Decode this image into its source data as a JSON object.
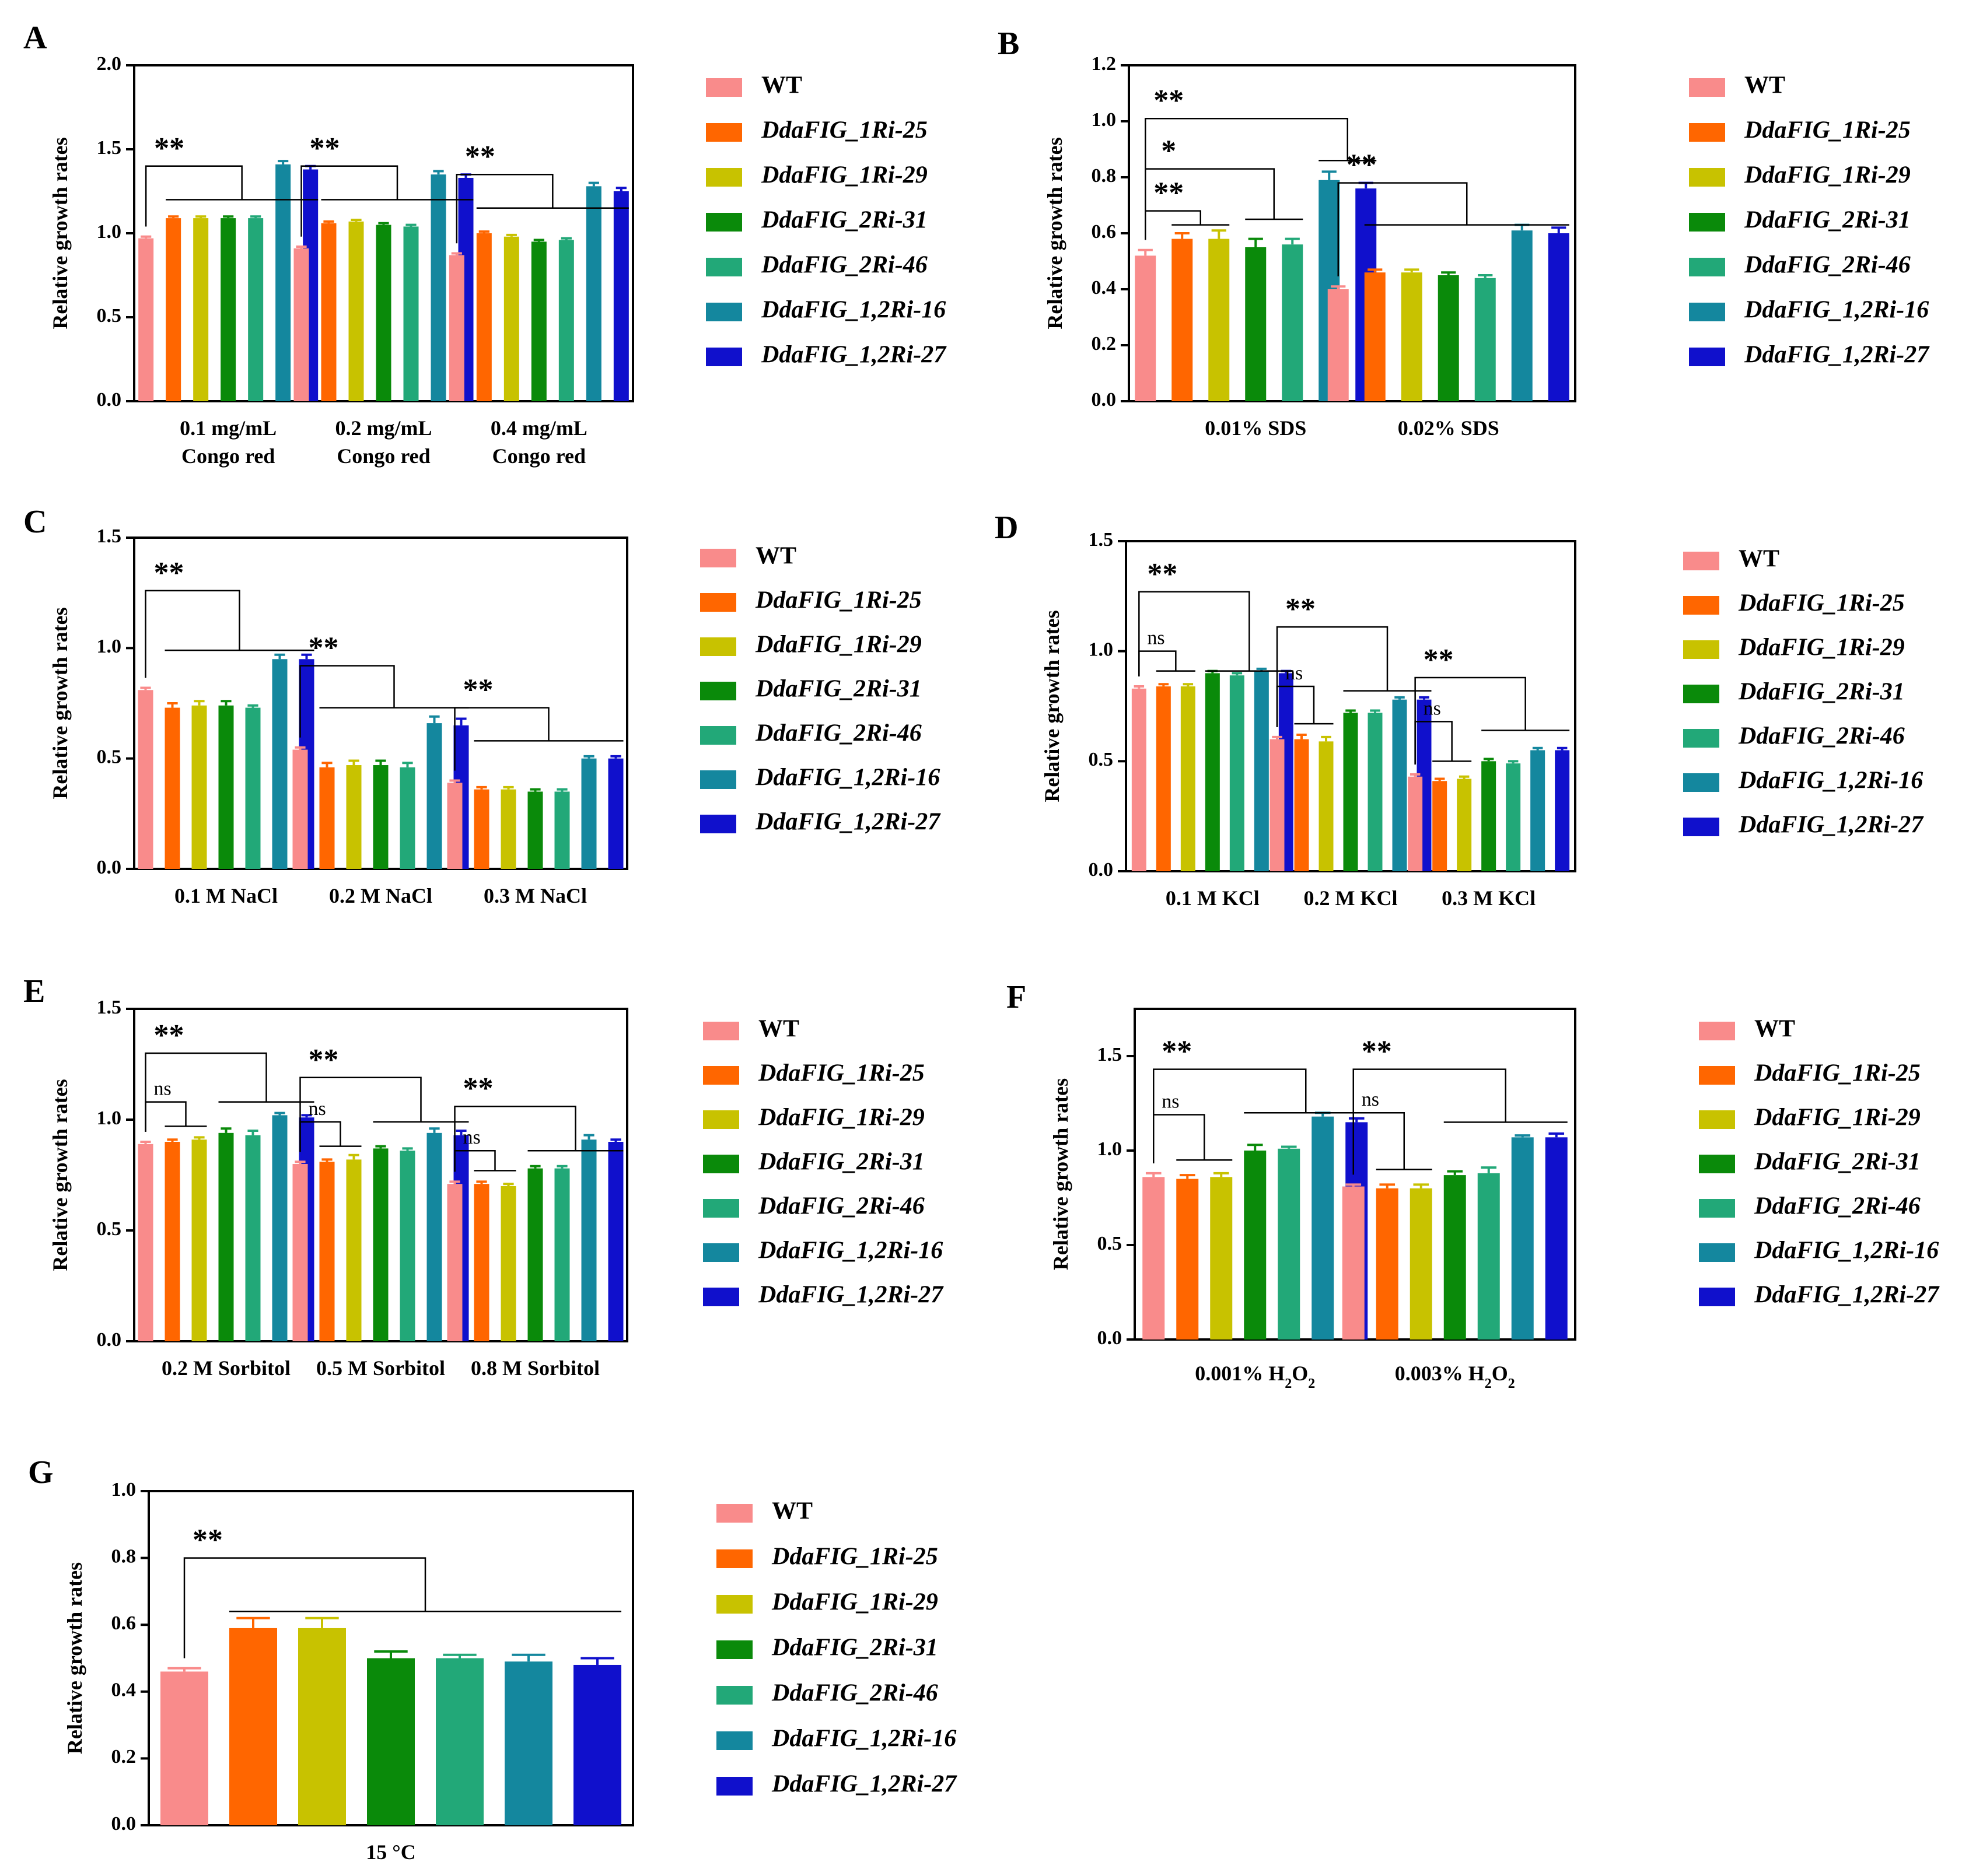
{
  "legend": {
    "entries": [
      "WT",
      "DdaFIG_1Ri-25",
      "DdaFIG_1Ri-29",
      "DdaFIG_2Ri-31",
      "DdaFIG_2Ri-46",
      "DdaFIG_1,2Ri-16",
      "DdaFIG_1,2Ri-27"
    ],
    "colors": [
      "#F98B8B",
      "#FF6600",
      "#C8C200",
      "#0A8A0A",
      "#22A878",
      "#14879E",
      "#1010CC"
    ]
  },
  "chart_data": [
    {
      "panel": "A",
      "type": "bar",
      "ylabel": "Relative growth rates",
      "ylim": [
        0,
        2.0
      ],
      "yticks": [
        "0.0",
        "0.5",
        "1.0",
        "1.5",
        "2.0"
      ],
      "categories": [
        [
          "0.1 mg/mL",
          "Congo red"
        ],
        [
          "0.2 mg/mL",
          "Congo red"
        ],
        [
          "0.4 mg/mL",
          "Congo red"
        ]
      ],
      "series_values": [
        [
          0.97,
          1.09,
          1.09,
          1.09,
          1.09,
          1.41,
          1.38
        ],
        [
          0.91,
          1.06,
          1.07,
          1.05,
          1.04,
          1.35,
          1.33
        ],
        [
          0.87,
          1.0,
          0.98,
          0.95,
          0.96,
          1.28,
          1.25
        ]
      ],
      "errors": [
        [
          0.01,
          0.01,
          0.01,
          0.01,
          0.01,
          0.02,
          0.02
        ],
        [
          0.01,
          0.01,
          0.01,
          0.01,
          0.01,
          0.02,
          0.02
        ],
        [
          0.01,
          0.01,
          0.01,
          0.01,
          0.01,
          0.02,
          0.02
        ]
      ],
      "annotations": [
        "**",
        "**",
        "**"
      ]
    },
    {
      "panel": "B",
      "type": "bar",
      "ylabel": "Relative growth rates",
      "ylim": [
        0,
        1.2
      ],
      "yticks": [
        "0.0",
        "0.2",
        "0.4",
        "0.6",
        "0.8",
        "1.0",
        "1.2"
      ],
      "categories": [
        [
          "0.01% SDS"
        ],
        [
          "0.02% SDS"
        ]
      ],
      "series_values": [
        [
          0.52,
          0.58,
          0.58,
          0.55,
          0.56,
          0.79,
          0.76
        ],
        [
          0.4,
          0.46,
          0.46,
          0.45,
          0.44,
          0.61,
          0.6
        ]
      ],
      "errors": [
        [
          0.02,
          0.02,
          0.03,
          0.03,
          0.02,
          0.03,
          0.02
        ],
        [
          0.01,
          0.01,
          0.01,
          0.01,
          0.01,
          0.02,
          0.02
        ]
      ],
      "annotations": [
        "**",
        "*",
        "**",
        "**"
      ]
    },
    {
      "panel": "C",
      "type": "bar",
      "ylabel": "Relative growth rates",
      "ylim": [
        0,
        1.5
      ],
      "yticks": [
        "0.0",
        "0.5",
        "1.0",
        "1.5"
      ],
      "categories": [
        [
          "0.1 M NaCl"
        ],
        [
          "0.2 M NaCl"
        ],
        [
          "0.3 M NaCl"
        ]
      ],
      "series_values": [
        [
          0.81,
          0.73,
          0.74,
          0.74,
          0.73,
          0.95,
          0.95
        ],
        [
          0.54,
          0.46,
          0.47,
          0.47,
          0.46,
          0.66,
          0.65
        ],
        [
          0.39,
          0.36,
          0.36,
          0.35,
          0.35,
          0.5,
          0.5
        ]
      ],
      "errors": [
        [
          0.01,
          0.02,
          0.02,
          0.02,
          0.01,
          0.02,
          0.02
        ],
        [
          0.01,
          0.02,
          0.02,
          0.02,
          0.02,
          0.03,
          0.03
        ],
        [
          0.01,
          0.01,
          0.01,
          0.01,
          0.01,
          0.01,
          0.01
        ]
      ],
      "annotations": [
        "**",
        "**",
        "**"
      ]
    },
    {
      "panel": "D",
      "type": "bar",
      "ylabel": "Relative growth rates",
      "ylim": [
        0,
        1.5
      ],
      "yticks": [
        "0.0",
        "0.5",
        "1.0",
        "1.5"
      ],
      "categories": [
        [
          "0.1 M KCl"
        ],
        [
          "0.2 M KCl"
        ],
        [
          "0.3 M KCl"
        ]
      ],
      "series_values": [
        [
          0.83,
          0.84,
          0.84,
          0.9,
          0.89,
          0.91,
          0.9
        ],
        [
          0.6,
          0.6,
          0.59,
          0.72,
          0.72,
          0.78,
          0.78
        ],
        [
          0.43,
          0.41,
          0.42,
          0.5,
          0.49,
          0.55,
          0.55
        ]
      ],
      "errors": [
        [
          0.01,
          0.01,
          0.01,
          0.01,
          0.01,
          0.01,
          0.01
        ],
        [
          0.01,
          0.02,
          0.02,
          0.01,
          0.01,
          0.01,
          0.01
        ],
        [
          0.01,
          0.01,
          0.01,
          0.01,
          0.01,
          0.01,
          0.01
        ]
      ],
      "annotations": [
        "ns",
        "**",
        "ns",
        "**",
        "ns",
        "**"
      ]
    },
    {
      "panel": "E",
      "type": "bar",
      "ylabel": "Relative growth rates",
      "ylim": [
        0,
        1.5
      ],
      "yticks": [
        "0.0",
        "0.5",
        "1.0",
        "1.5"
      ],
      "categories": [
        [
          "0.2 M Sorbitol"
        ],
        [
          "0.5 M Sorbitol"
        ],
        [
          "0.8 M Sorbitol"
        ]
      ],
      "series_values": [
        [
          0.89,
          0.9,
          0.91,
          0.94,
          0.93,
          1.02,
          1.01
        ],
        [
          0.8,
          0.81,
          0.82,
          0.87,
          0.86,
          0.94,
          0.93
        ],
        [
          0.71,
          0.71,
          0.7,
          0.78,
          0.78,
          0.91,
          0.9
        ]
      ],
      "errors": [
        [
          0.01,
          0.01,
          0.01,
          0.02,
          0.02,
          0.01,
          0.01
        ],
        [
          0.01,
          0.01,
          0.02,
          0.01,
          0.01,
          0.02,
          0.02
        ],
        [
          0.01,
          0.01,
          0.01,
          0.01,
          0.01,
          0.02,
          0.01
        ]
      ],
      "annotations": [
        "ns",
        "**",
        "ns",
        "**",
        "ns",
        "**"
      ]
    },
    {
      "panel": "F",
      "type": "bar",
      "ylabel": "Relative growth rates",
      "ylim": [
        0,
        1.75
      ],
      "yticks": [
        "0.0",
        "0.5",
        "1.0",
        "1.5"
      ],
      "categories": [
        [
          "0.001% H",
          "2",
          "O",
          "2"
        ],
        [
          "0.003% H",
          "2",
          "O",
          "2"
        ]
      ],
      "series_values": [
        [
          0.86,
          0.85,
          0.86,
          1.0,
          1.01,
          1.18,
          1.15
        ],
        [
          0.81,
          0.8,
          0.8,
          0.87,
          0.88,
          1.07,
          1.07
        ]
      ],
      "errors": [
        [
          0.02,
          0.02,
          0.02,
          0.03,
          0.01,
          0.02,
          0.02
        ],
        [
          0.01,
          0.02,
          0.02,
          0.02,
          0.03,
          0.01,
          0.02
        ]
      ],
      "annotations": [
        "ns",
        "**",
        "ns",
        "**"
      ]
    },
    {
      "panel": "G",
      "type": "bar",
      "ylabel": "Relative growth rates",
      "ylim": [
        0,
        1.0
      ],
      "yticks": [
        "0.0",
        "0.2",
        "0.4",
        "0.6",
        "0.8",
        "1.0"
      ],
      "categories": [
        [
          "15 °C"
        ]
      ],
      "series_values": [
        [
          0.46,
          0.59,
          0.59,
          0.5,
          0.5,
          0.49,
          0.48
        ]
      ],
      "errors": [
        [
          0.01,
          0.03,
          0.03,
          0.02,
          0.01,
          0.02,
          0.02
        ]
      ],
      "annotations": [
        "**"
      ]
    }
  ]
}
